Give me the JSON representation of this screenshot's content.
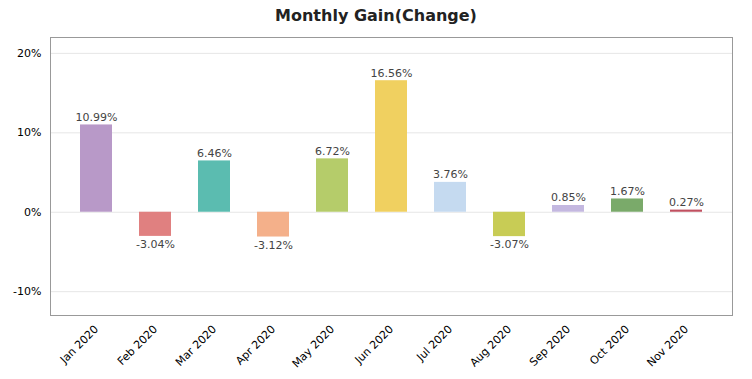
{
  "chart_data": {
    "type": "bar",
    "title": "Monthly Gain(Change)",
    "categories": [
      "Jan 2020",
      "Feb 2020",
      "Mar 2020",
      "Apr 2020",
      "May 2020",
      "Jun 2020",
      "Jul 2020",
      "Aug 2020",
      "Sep 2020",
      "Oct 2020",
      "Nov 2020"
    ],
    "values": [
      10.99,
      -3.04,
      6.46,
      -3.12,
      6.72,
      16.56,
      3.76,
      -3.07,
      0.85,
      1.67,
      0.27
    ],
    "value_labels": [
      "10.99%",
      "-3.04%",
      "6.46%",
      "-3.12%",
      "6.72%",
      "16.56%",
      "3.76%",
      "-3.07%",
      "0.85%",
      "1.67%",
      "0.27%"
    ],
    "colors": [
      "#b899c8",
      "#e08080",
      "#5bbcb0",
      "#f4b08a",
      "#b5cc6a",
      "#f0d060",
      "#c5daf0",
      "#c8cc55",
      "#c4b8e0",
      "#7aaa6a",
      "#c05060"
    ],
    "ylim": [
      -13,
      22
    ],
    "yticks": [
      {
        "value": -10,
        "label": "-10%"
      },
      {
        "value": 0,
        "label": "0%"
      },
      {
        "value": 10,
        "label": "10%"
      },
      {
        "value": 20,
        "label": "20%"
      }
    ],
    "grid": true,
    "data_labels": true
  }
}
